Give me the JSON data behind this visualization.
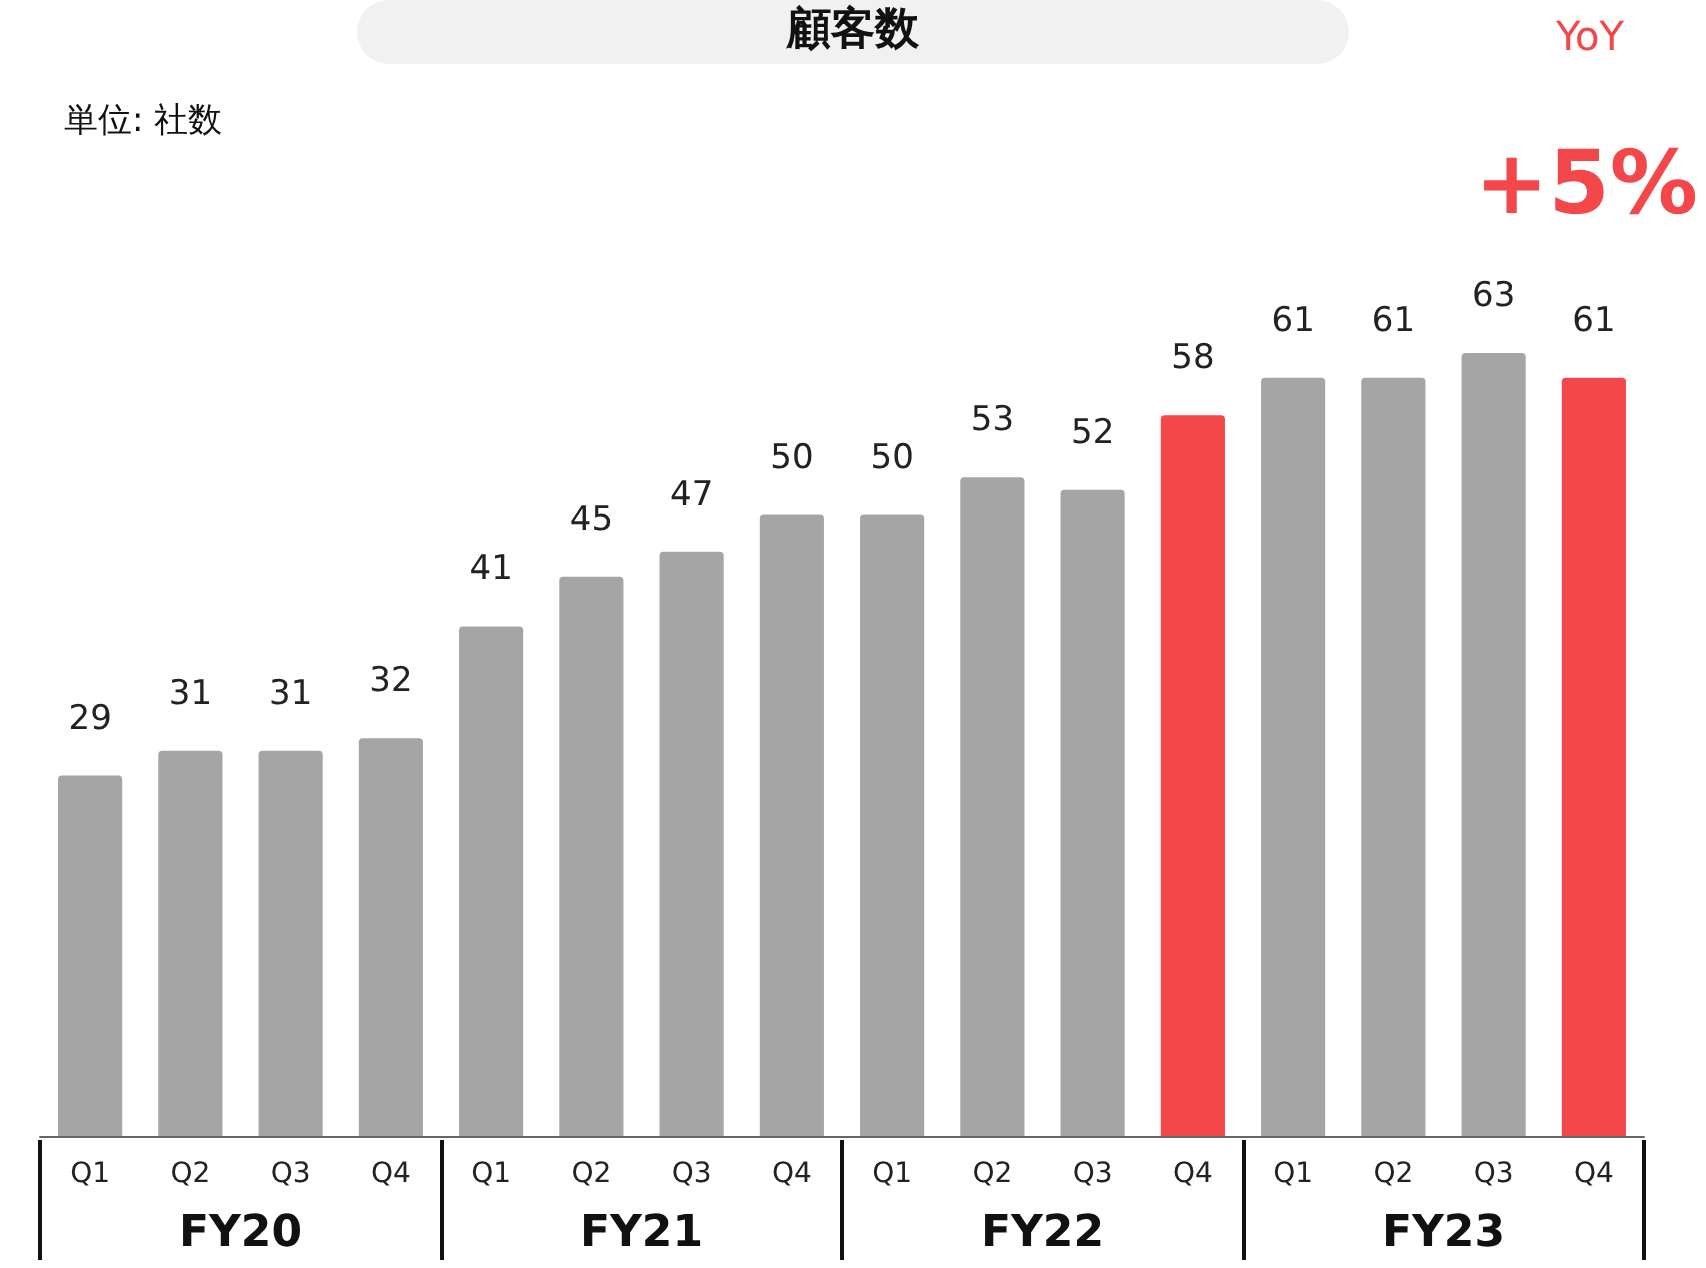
{
  "chart_data": {
    "type": "bar",
    "title": "顧客数",
    "categories": [
      "Q1",
      "Q2",
      "Q3",
      "Q4",
      "Q1",
      "Q2",
      "Q3",
      "Q4",
      "Q1",
      "Q2",
      "Q3",
      "Q4",
      "Q1",
      "Q2",
      "Q3",
      "Q4"
    ],
    "values": [
      29,
      31,
      31,
      32,
      41,
      45,
      47,
      50,
      50,
      53,
      52,
      58,
      61,
      61,
      63,
      61
    ],
    "colors": [
      "#a5a5a5",
      "#a5a5a5",
      "#a5a5a5",
      "#a5a5a5",
      "#a5a5a5",
      "#a5a5a5",
      "#a5a5a5",
      "#a5a5a5",
      "#a5a5a5",
      "#a5a5a5",
      "#a5a5a5",
      "#f4474a",
      "#a5a5a5",
      "#a5a5a5",
      "#a5a5a5",
      "#f4474a"
    ],
    "data_labels": true,
    "annotations": [
      "単位: 社数",
      "YoY",
      "+5%",
      "FY20",
      "FY21",
      "FY22",
      "FY23"
    ]
  }
}
